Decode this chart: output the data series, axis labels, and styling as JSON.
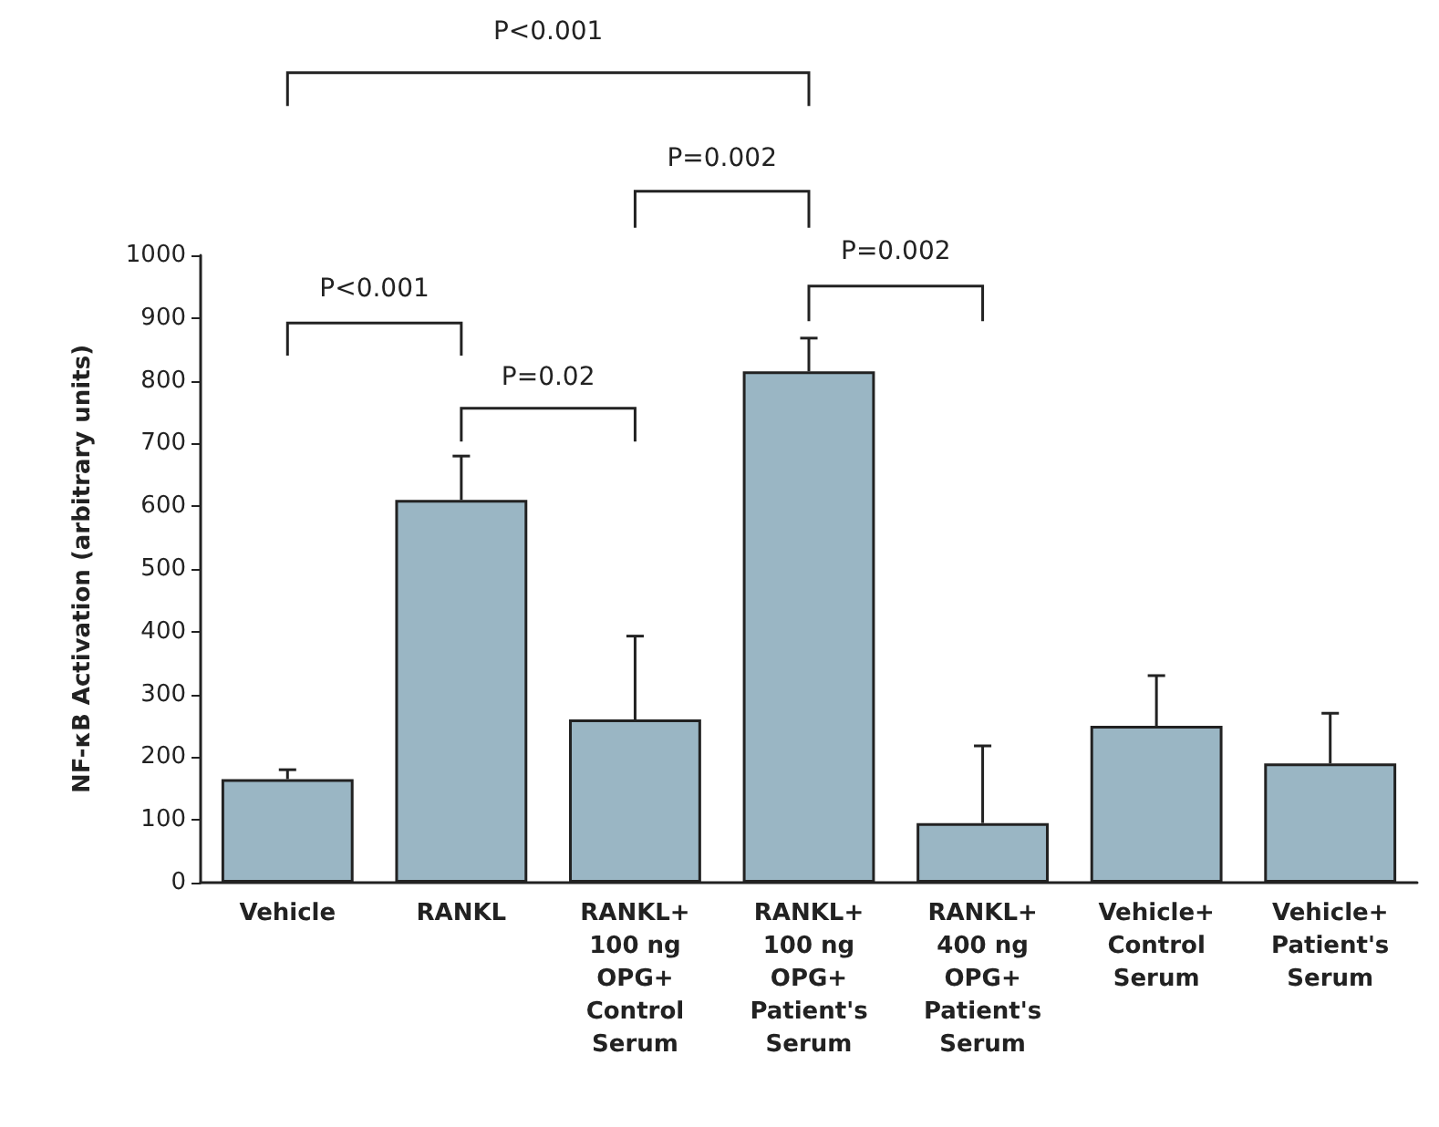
{
  "chart_data": {
    "type": "bar",
    "ylabel": "NF-κB Activation (arbitrary units)",
    "categories": [
      "Vehicle",
      "RANKL",
      "RANKL+\n100 ng\nOPG+\nControl\nSerum",
      "RANKL+\n100 ng\nOPG+\nPatient's\nSerum",
      "RANKL+\n400 ng\nOPG+\nPatient's\nSerum",
      "Vehicle+\nControl\nSerum",
      "Vehicle+\nPatient's\nSerum"
    ],
    "values": [
      165,
      610,
      260,
      815,
      95,
      250,
      190
    ],
    "errors": [
      [
        165,
        180
      ],
      [
        610,
        680
      ],
      [
        260,
        393
      ],
      [
        815,
        868
      ],
      [
        95,
        218
      ],
      [
        250,
        330
      ],
      [
        190,
        270
      ]
    ],
    "color": "#9ab6c4",
    "ylim": [
      0,
      1000
    ],
    "yticks": [
      0,
      100,
      200,
      300,
      400,
      500,
      600,
      700,
      800,
      900,
      1000
    ],
    "grid": false,
    "annotations": [
      "P<0.001",
      "P=0.002",
      "P<0.001",
      "P=0.02",
      "P=0.002"
    ]
  }
}
